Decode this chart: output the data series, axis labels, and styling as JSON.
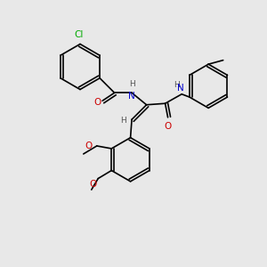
{
  "background_color": "#e8e8e8",
  "figsize": [
    3.0,
    3.0
  ],
  "dpi": 100,
  "bond_color": "#000000",
  "bond_width": 1.2,
  "font_size": 7.5,
  "atoms": {
    "Cl": {
      "color": "#00aa00"
    },
    "O": {
      "color": "#cc0000"
    },
    "N": {
      "color": "#0000cc"
    },
    "H": {
      "color": "#555555"
    },
    "C": {
      "color": "#000000"
    }
  }
}
